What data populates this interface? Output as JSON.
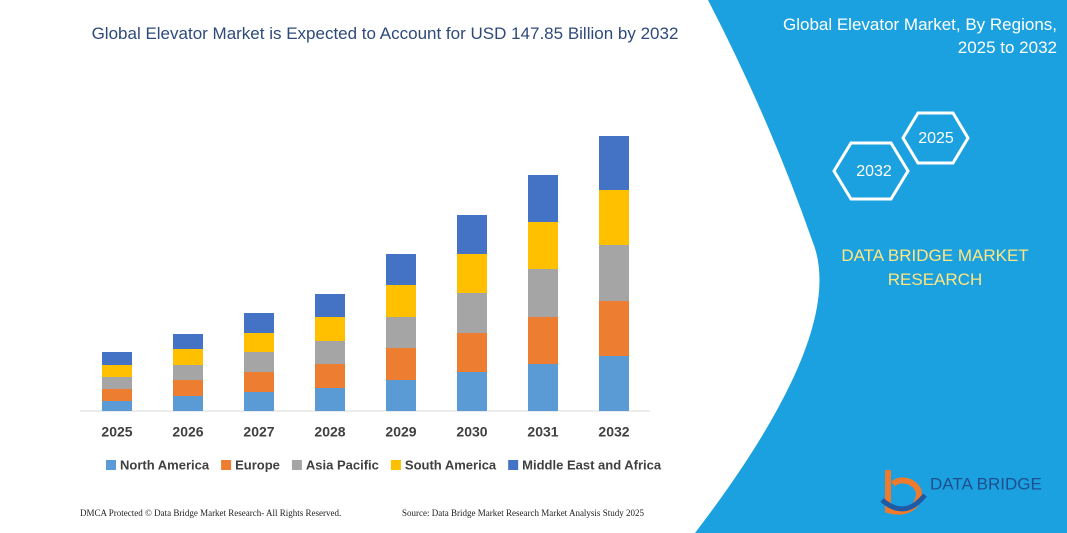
{
  "chart_data": {
    "type": "bar",
    "stacked": true,
    "title": "Global Elevator Market is Expected to Account for USD 147.85 Billion by 2032",
    "categories": [
      "2025",
      "2026",
      "2027",
      "2028",
      "2029",
      "2030",
      "2031",
      "2032"
    ],
    "series": [
      {
        "name": "North America",
        "color": "#5b9bd5",
        "values": [
          10,
          15,
          19,
          23,
          31,
          39,
          47,
          55
        ]
      },
      {
        "name": "Europe",
        "color": "#ed7d31",
        "values": [
          12,
          16,
          20,
          24,
          32,
          39,
          47,
          55
        ]
      },
      {
        "name": "Asia Pacific",
        "color": "#a5a5a5",
        "values": [
          12,
          15,
          20,
          23,
          31,
          40,
          48,
          56
        ]
      },
      {
        "name": "South America",
        "color": "#ffc000",
        "values": [
          12,
          16,
          19,
          24,
          32,
          39,
          47,
          55
        ]
      },
      {
        "name": "Middle East and Africa",
        "color": "#4472c4",
        "values": [
          13,
          15,
          20,
          23,
          31,
          39,
          47,
          54
        ]
      }
    ]
  },
  "panel": {
    "title": "Global Elevator Market, By Regions, 2025 to 2032",
    "hex_front": "2032",
    "hex_back": "2025",
    "brand": "DATA BRIDGE MARKET RESEARCH"
  },
  "logo": {
    "text": "DATA BRIDGE"
  },
  "footer": {
    "left": "DMCA Protected © Data Bridge Market Research- All Rights Reserved.",
    "right": "Source: Data Bridge Market Research Market Analysis Study 2025"
  }
}
